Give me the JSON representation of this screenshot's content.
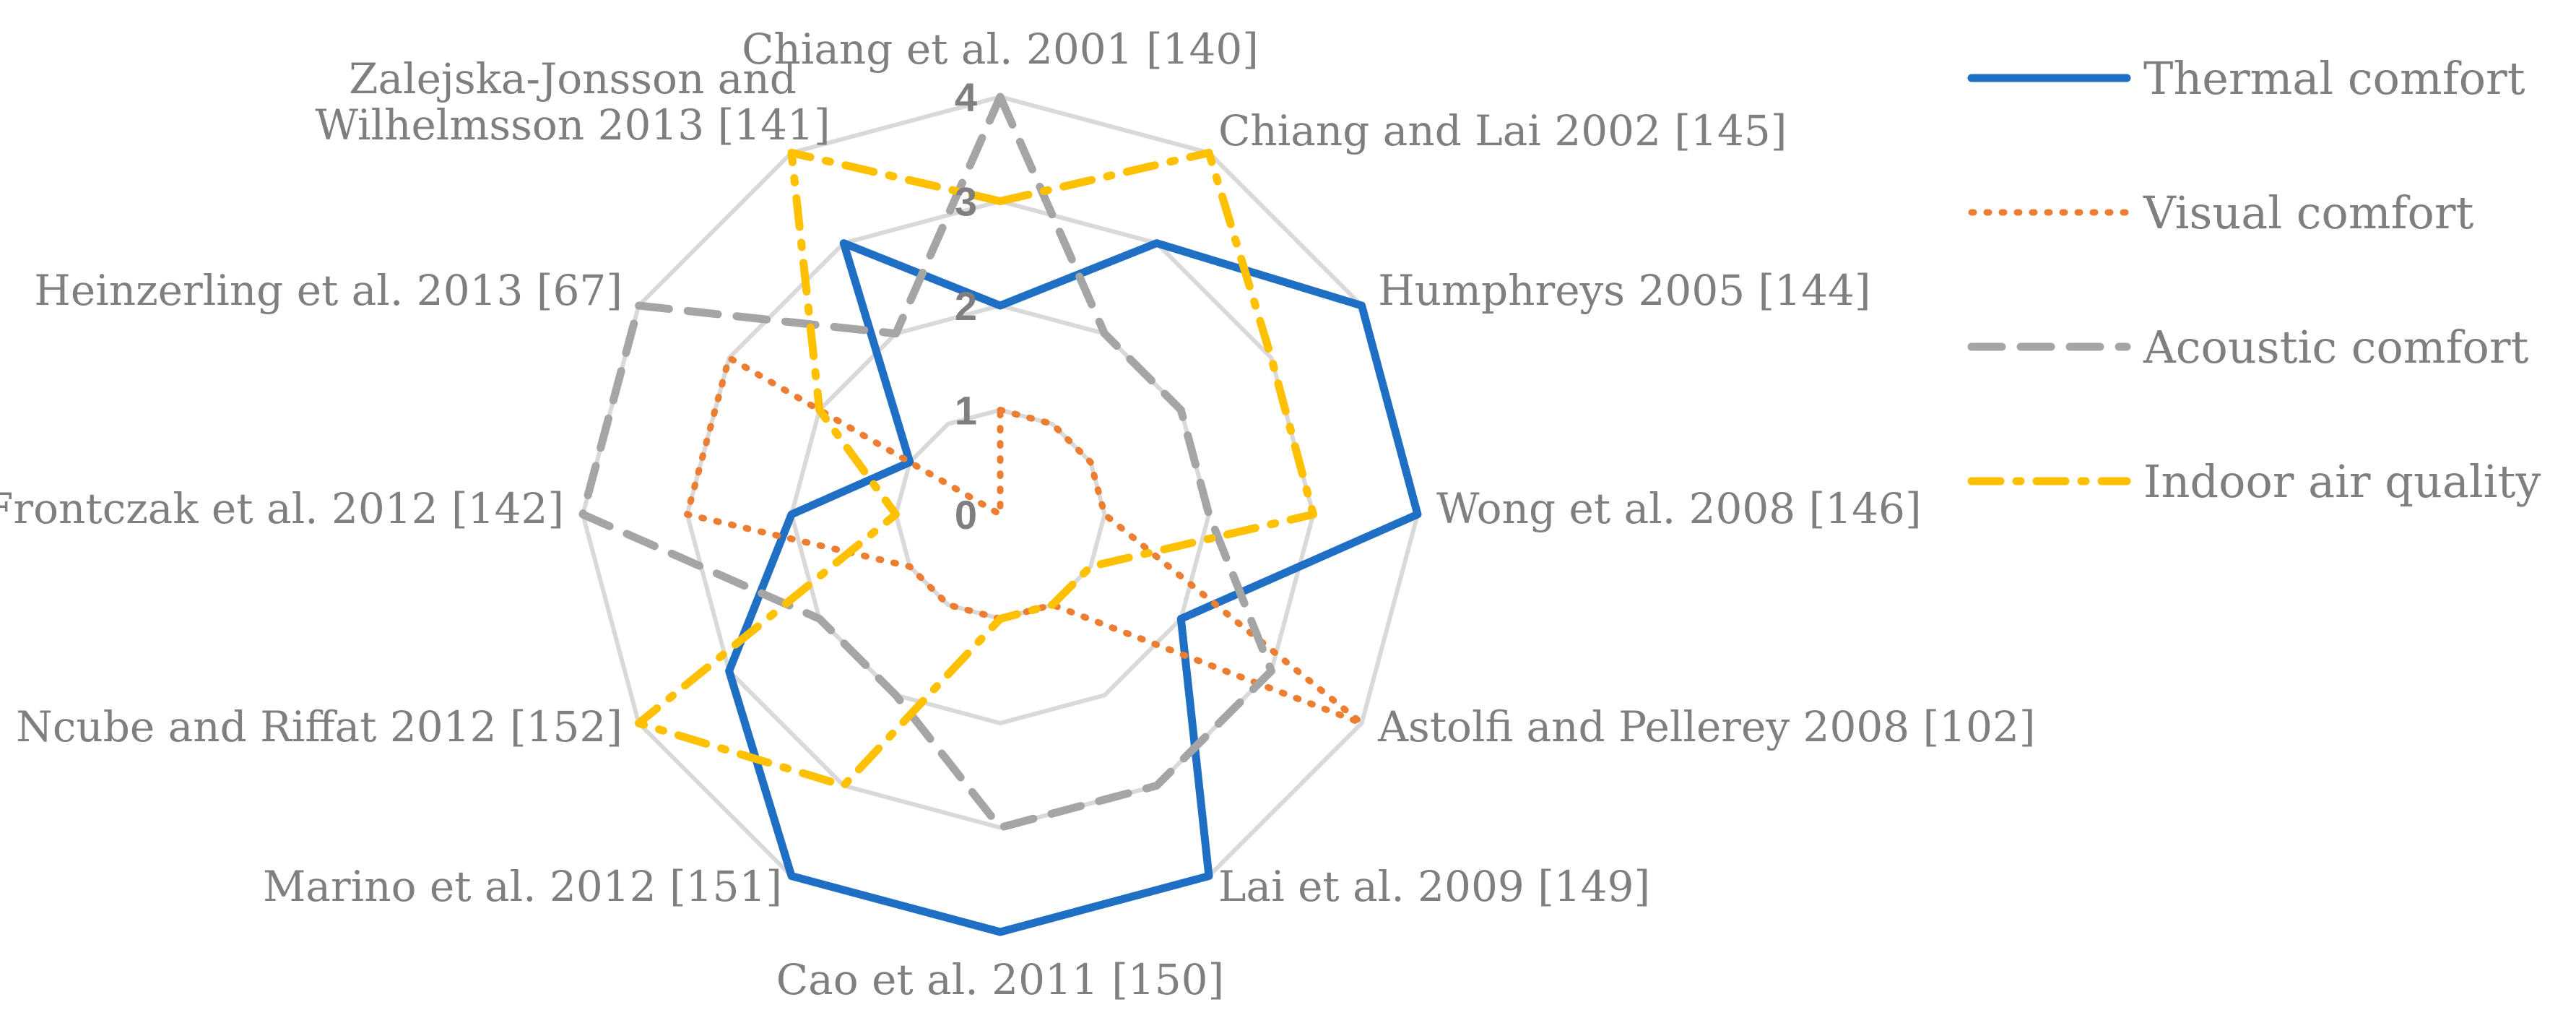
{
  "chart_data": {
    "type": "radar",
    "categories": [
      "Chiang et al. 2001 [140]",
      "Chiang and Lai 2002 [145]",
      "Humphreys 2005 [144]",
      "Wong et al. 2008 [146]",
      "Astolfi and Pellerey 2008 [102]",
      "Lai et al. 2009 [149]",
      "Cao et al. 2011 [150]",
      "Marino et al. 2012 [151]",
      "Ncube and Riffat 2012 [152]",
      "Frontczak et al. 2012 [142]",
      "Heinzerling et al. 2013 [67]",
      "Zalejska-Jonsson and Wilhelmsson 2013 [141]"
    ],
    "category_label_lines": [
      [
        "Chiang et al. 2001 [140]"
      ],
      [
        "Chiang and Lai 2002 [145]"
      ],
      [
        "Humphreys 2005 [144]"
      ],
      [
        "Wong et al. 2008 [146]"
      ],
      [
        "Astolfi and Pellerey 2008 [102]"
      ],
      [
        "Lai et al. 2009 [149]"
      ],
      [
        "Cao et al. 2011 [150]"
      ],
      [
        "Marino et al. 2012 [151]"
      ],
      [
        "Ncube and Riffat 2012 [152]"
      ],
      [
        "Frontczak et al. 2012 [142]"
      ],
      [
        "Heinzerling et al. 2013 [67]"
      ],
      [
        "Zalejska-Jonsson and",
        "Wilhelmsson 2013 [141]"
      ]
    ],
    "ticks": [
      "0",
      "1",
      "2",
      "3",
      "4"
    ],
    "range": [
      0,
      4
    ],
    "grid": true,
    "legend_position": "right",
    "series": [
      {
        "name": "Thermal comfort",
        "color": "#1f6fc5",
        "dash": "solid",
        "values": [
          2,
          3,
          4,
          4,
          2,
          4,
          4,
          4,
          3,
          2,
          1,
          3
        ]
      },
      {
        "name": "Visual comfort",
        "color": "#ed7d31",
        "dash": "dotted",
        "values": [
          1,
          1,
          1,
          1,
          4,
          1,
          1,
          1,
          1,
          3,
          3,
          0
        ]
      },
      {
        "name": "Acoustic comfort",
        "color": "#a5a5a5",
        "dash": "dashed",
        "values": [
          4,
          2,
          2,
          2,
          3,
          3,
          3,
          2,
          2,
          4,
          4,
          2
        ]
      },
      {
        "name": "Indoor air quality",
        "color": "#ffc000",
        "dash": "dashdot",
        "values": [
          3,
          4,
          3,
          3,
          1,
          1,
          1,
          3,
          4,
          1,
          2,
          4
        ]
      }
    ]
  }
}
